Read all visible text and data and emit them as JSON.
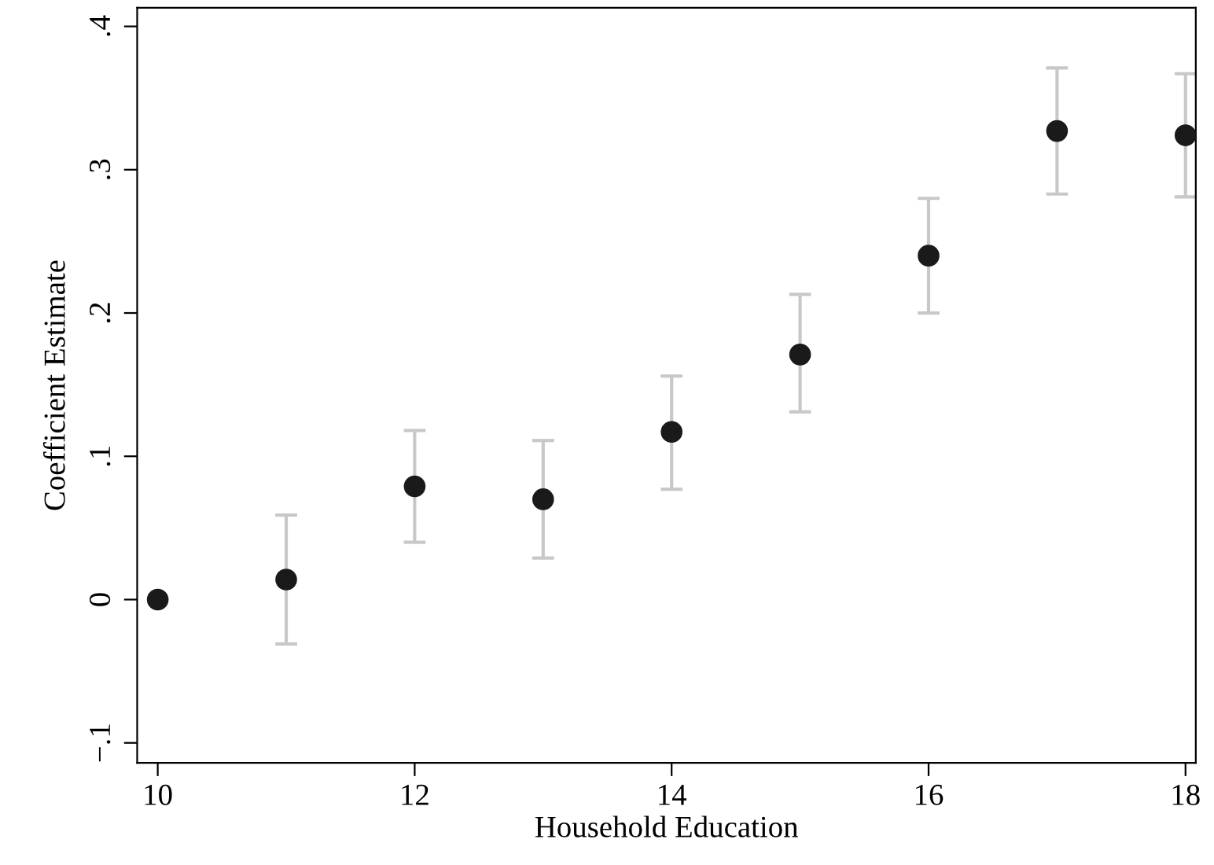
{
  "chart_data": {
    "type": "scatter",
    "xlabel": "Household Education",
    "ylabel": "Coefficient Estimate",
    "x": [
      10,
      11,
      12,
      13,
      14,
      15,
      16,
      17,
      18
    ],
    "series": [
      {
        "color": "#1a1a1a",
        "values": [
          0,
          0.014,
          0.079,
          0.07,
          0.117,
          0.171,
          0.24,
          0.327,
          0.324
        ],
        "errors": [
          null,
          [
            -0.031,
            0.059
          ],
          [
            0.04,
            0.118
          ],
          [
            0.029,
            0.111
          ],
          [
            0.077,
            0.156
          ],
          [
            0.131,
            0.213
          ],
          [
            0.2,
            0.28
          ],
          [
            0.283,
            0.371
          ],
          [
            0.281,
            0.367
          ]
        ]
      }
    ],
    "xlim": [
      9.84,
      18.08
    ],
    "ylim": [
      -0.114,
      0.413
    ],
    "xticks": [
      10,
      12,
      14,
      16,
      18
    ],
    "yticks": [
      {
        "value": -0.1,
        "label": "−.1"
      },
      {
        "value": 0,
        "label": "0"
      },
      {
        "value": 0.1,
        "label": ".1"
      },
      {
        "value": 0.2,
        "label": ".2"
      },
      {
        "value": 0.3,
        "label": ".3"
      },
      {
        "value": 0.4,
        "label": ".4"
      }
    ],
    "marker": "circle",
    "grid": false,
    "legend": false
  }
}
